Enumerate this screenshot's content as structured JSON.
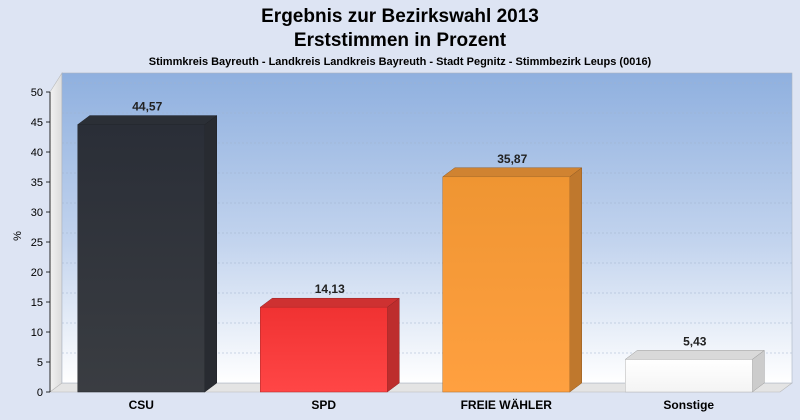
{
  "chart_data": {
    "type": "bar",
    "title": "Ergebnis zur Bezirkswahl 2013",
    "subtitle": "Erststimmen in Prozent",
    "caption": "Stimmkreis Bayreuth - Landkreis Landkreis Bayreuth - Stadt Pegnitz - Stimmbezirk Leups (0016)",
    "ylabel": "%",
    "xlabel": "",
    "ylim": [
      0,
      50
    ],
    "yticks": [
      "0",
      "5",
      "10",
      "15",
      "20",
      "25",
      "30",
      "35",
      "40",
      "45",
      "50"
    ],
    "categories": [
      "CSU",
      "SPD",
      "FREIE WÄHLER",
      "Sonstige"
    ],
    "values": [
      44.57,
      14.13,
      35.87,
      5.43
    ],
    "value_labels": [
      "44,57",
      "14,13",
      "35,87",
      "5,43"
    ],
    "colors": [
      "#33373f",
      "#f23a3a",
      "#f59a3a",
      "#ffffff"
    ],
    "grid": true,
    "legend": "none"
  }
}
